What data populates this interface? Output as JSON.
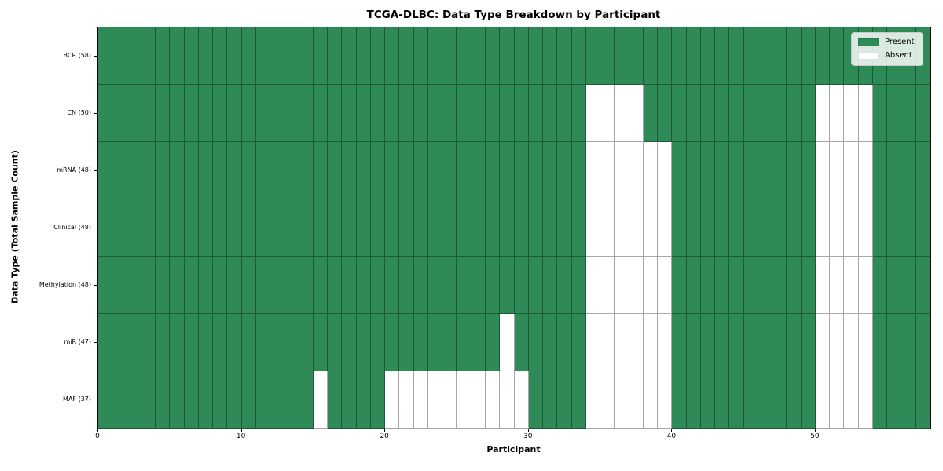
{
  "title": "TCGA-DLBC: Data Type Breakdown by Participant",
  "chart_data": {
    "type": "heatmap",
    "title": "TCGA-DLBC: Data Type Breakdown by Participant",
    "xlabel": "Participant",
    "ylabel": "Data Type (Total Sample Count)",
    "xlim": [
      0,
      58
    ],
    "n_participants": 58,
    "x_ticks": [
      0,
      10,
      20,
      30,
      40,
      50
    ],
    "grid": true,
    "legend_position": "upper right",
    "colors": {
      "present": "#2e8b57",
      "absent": "#ffffff",
      "cell_edge": "rgba(0,0,0,0.35)",
      "axes_edge": "#000000"
    },
    "legend": {
      "items": [
        {
          "label": "Present",
          "color": "#2e8b57"
        },
        {
          "label": "Absent",
          "color": "#ffffff"
        }
      ]
    },
    "rows": [
      {
        "name": "BCR",
        "label": "BCR (58)",
        "total": 58,
        "absent_participants": []
      },
      {
        "name": "CN",
        "label": "CN (50)",
        "total": 50,
        "absent_participants": [
          34,
          35,
          36,
          37,
          50,
          51,
          52,
          53
        ]
      },
      {
        "name": "mRNA",
        "label": "mRNA (48)",
        "total": 48,
        "absent_participants": [
          34,
          35,
          36,
          37,
          38,
          39,
          50,
          51,
          52,
          53
        ]
      },
      {
        "name": "Clinical",
        "label": "Clinical (48)",
        "total": 48,
        "absent_participants": [
          34,
          35,
          36,
          37,
          38,
          39,
          50,
          51,
          52,
          53
        ]
      },
      {
        "name": "Methylation",
        "label": "Methylation (48)",
        "total": 48,
        "absent_participants": [
          34,
          35,
          36,
          37,
          38,
          39,
          50,
          51,
          52,
          53
        ]
      },
      {
        "name": "miR",
        "label": "miR (47)",
        "total": 47,
        "absent_participants": [
          28,
          34,
          35,
          36,
          37,
          38,
          39,
          50,
          51,
          52,
          53
        ]
      },
      {
        "name": "MAF",
        "label": "MAF (37)",
        "total": 37,
        "absent_participants": [
          15,
          20,
          21,
          22,
          23,
          24,
          25,
          26,
          27,
          28,
          29,
          34,
          35,
          36,
          37,
          38,
          39,
          50,
          51,
          52,
          53
        ]
      }
    ]
  }
}
